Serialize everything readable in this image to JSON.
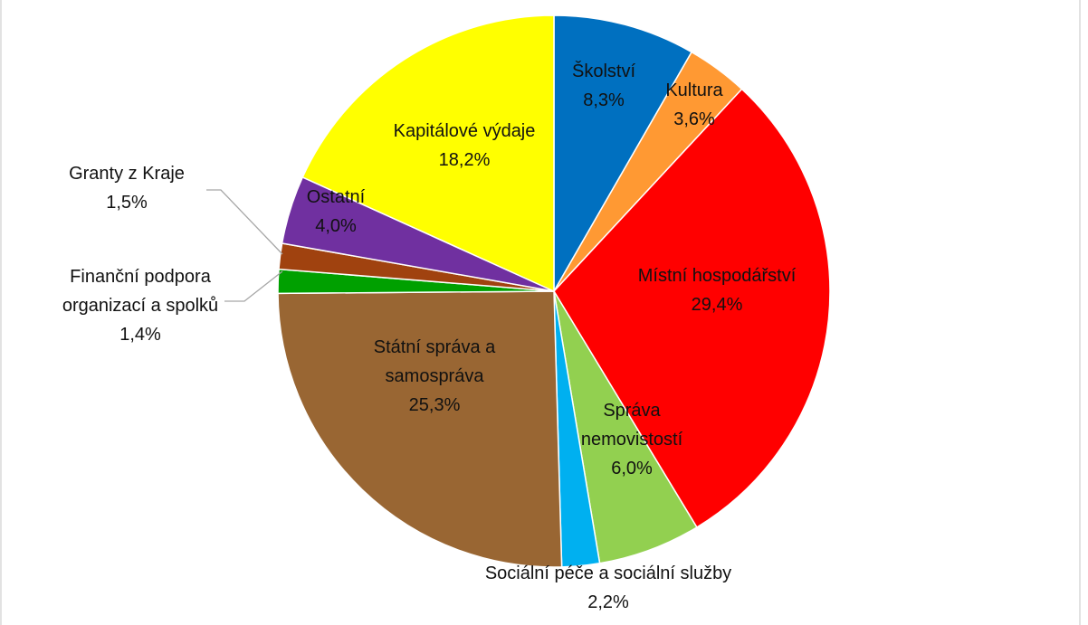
{
  "chart_data": {
    "type": "pie",
    "title": "",
    "start_angle_deg": 0,
    "direction": "clockwise",
    "slices": [
      {
        "label": "Školství",
        "value": 8.3,
        "value_text": "8,3%",
        "color": "#0070C0"
      },
      {
        "label": "Kultura",
        "value": 3.6,
        "value_text": "3,6%",
        "color": "#FF9933"
      },
      {
        "label": "Místní hospodářství",
        "value": 29.4,
        "value_text": "29,4%",
        "color": "#FF0000"
      },
      {
        "label": "Správa nemovistostí",
        "value": 6.0,
        "value_text": "6,0%",
        "color": "#92D050"
      },
      {
        "label": "Sociální péče a sociální služby",
        "value": 2.2,
        "value_text": "2,2%",
        "color": "#00B0F0"
      },
      {
        "label": "Státní správa a samospráva",
        "value": 25.3,
        "value_text": "25,3%",
        "color": "#996633"
      },
      {
        "label": "Finanční podpora organizací a spolků",
        "value": 1.4,
        "value_text": "1,4%",
        "color": "#00A000"
      },
      {
        "label": "Granty z Kraje",
        "value": 1.5,
        "value_text": "1,5%",
        "color": "#A0420F"
      },
      {
        "label": "Ostatní",
        "value": 4.0,
        "value_text": "4,0%",
        "color": "#7030A0"
      },
      {
        "label": "Kapitálové výdaje",
        "value": 18.2,
        "value_text": "18,2%",
        "color": "#FFFF00"
      }
    ]
  }
}
